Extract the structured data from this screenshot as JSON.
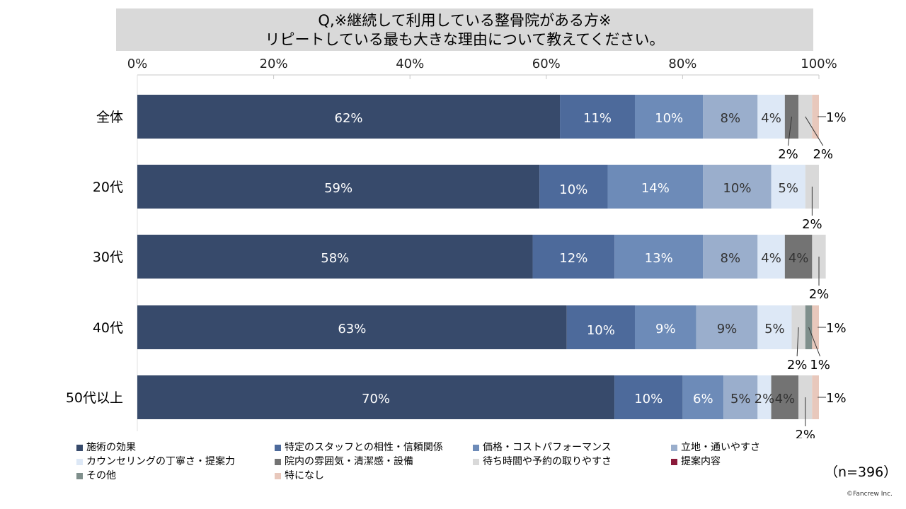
{
  "title": {
    "line1": "Q,※継続して利用している整骨院がある方※",
    "line2": "リピートしている最も大きな理由について教えてください。"
  },
  "chart_data": {
    "type": "bar",
    "orientation": "horizontal",
    "stacked": "100%",
    "categories": [
      "全体",
      "20代",
      "30代",
      "40代",
      "50代以上"
    ],
    "x_ticks": [
      "0%",
      "20%",
      "40%",
      "60%",
      "80%",
      "100%"
    ],
    "xlim": [
      0,
      100
    ],
    "legend_position": "bottom",
    "series": [
      {
        "name": "施術の効果",
        "color": "#374a6b",
        "values": [
          62,
          59,
          58,
          63,
          70
        ],
        "labels": [
          "62%",
          "59%",
          "58%",
          "63%",
          "70%"
        ]
      },
      {
        "name": "特定のスタッフとの相性・信頼関係",
        "color": "#4d6a9b",
        "values": [
          11,
          10,
          12,
          10,
          10
        ],
        "labels": [
          "11%",
          "10%",
          "12%",
          "10%",
          "10%"
        ]
      },
      {
        "name": "価格・コストパフォーマンス",
        "color": "#6d8bb8",
        "values": [
          10,
          14,
          13,
          9,
          6
        ],
        "labels": [
          "10%",
          "14%",
          "13%",
          "9%",
          "6%"
        ]
      },
      {
        "name": "立地・通いやすさ",
        "color": "#9aaecc",
        "values": [
          8,
          10,
          8,
          9,
          5
        ],
        "labels": [
          "8%",
          "10%",
          "8%",
          "9%",
          "5%"
        ]
      },
      {
        "name": "カウンセリングの丁寧さ・提案力",
        "color": "#dde8f6",
        "values": [
          4,
          5,
          4,
          5,
          2
        ],
        "labels": [
          "4%",
          "5%",
          "4%",
          "5%",
          "2%"
        ]
      },
      {
        "name": "院内の雰囲気・清潔感・設備",
        "color": "#737373",
        "values": [
          2,
          0,
          4,
          0,
          4
        ],
        "labels": [
          "2%",
          "",
          "4%",
          "",
          "4%"
        ]
      },
      {
        "name": "待ち時間や予約の取りやすさ",
        "color": "#d9d9d9",
        "values": [
          2,
          2,
          2,
          2,
          2
        ],
        "labels": [
          "2%",
          "2%",
          "2%",
          "2%",
          "2%"
        ]
      },
      {
        "name": "提案内容",
        "color": "#8b1a3a",
        "values": [
          0,
          0,
          0,
          0,
          0
        ],
        "labels": [
          "",
          "",
          "",
          "",
          ""
        ]
      },
      {
        "name": "その他",
        "color": "#7f8f8c",
        "values": [
          0,
          0,
          0,
          1,
          0
        ],
        "labels": [
          "",
          "",
          "",
          "1%",
          ""
        ]
      },
      {
        "name": "特になし",
        "color": "#e8c8bc",
        "values": [
          1,
          0,
          0,
          1,
          1
        ],
        "labels": [
          "1%",
          "",
          "",
          "1%",
          "1%"
        ]
      }
    ]
  },
  "sample_size": "（n=396）",
  "copyright": "©Fancrew Inc."
}
